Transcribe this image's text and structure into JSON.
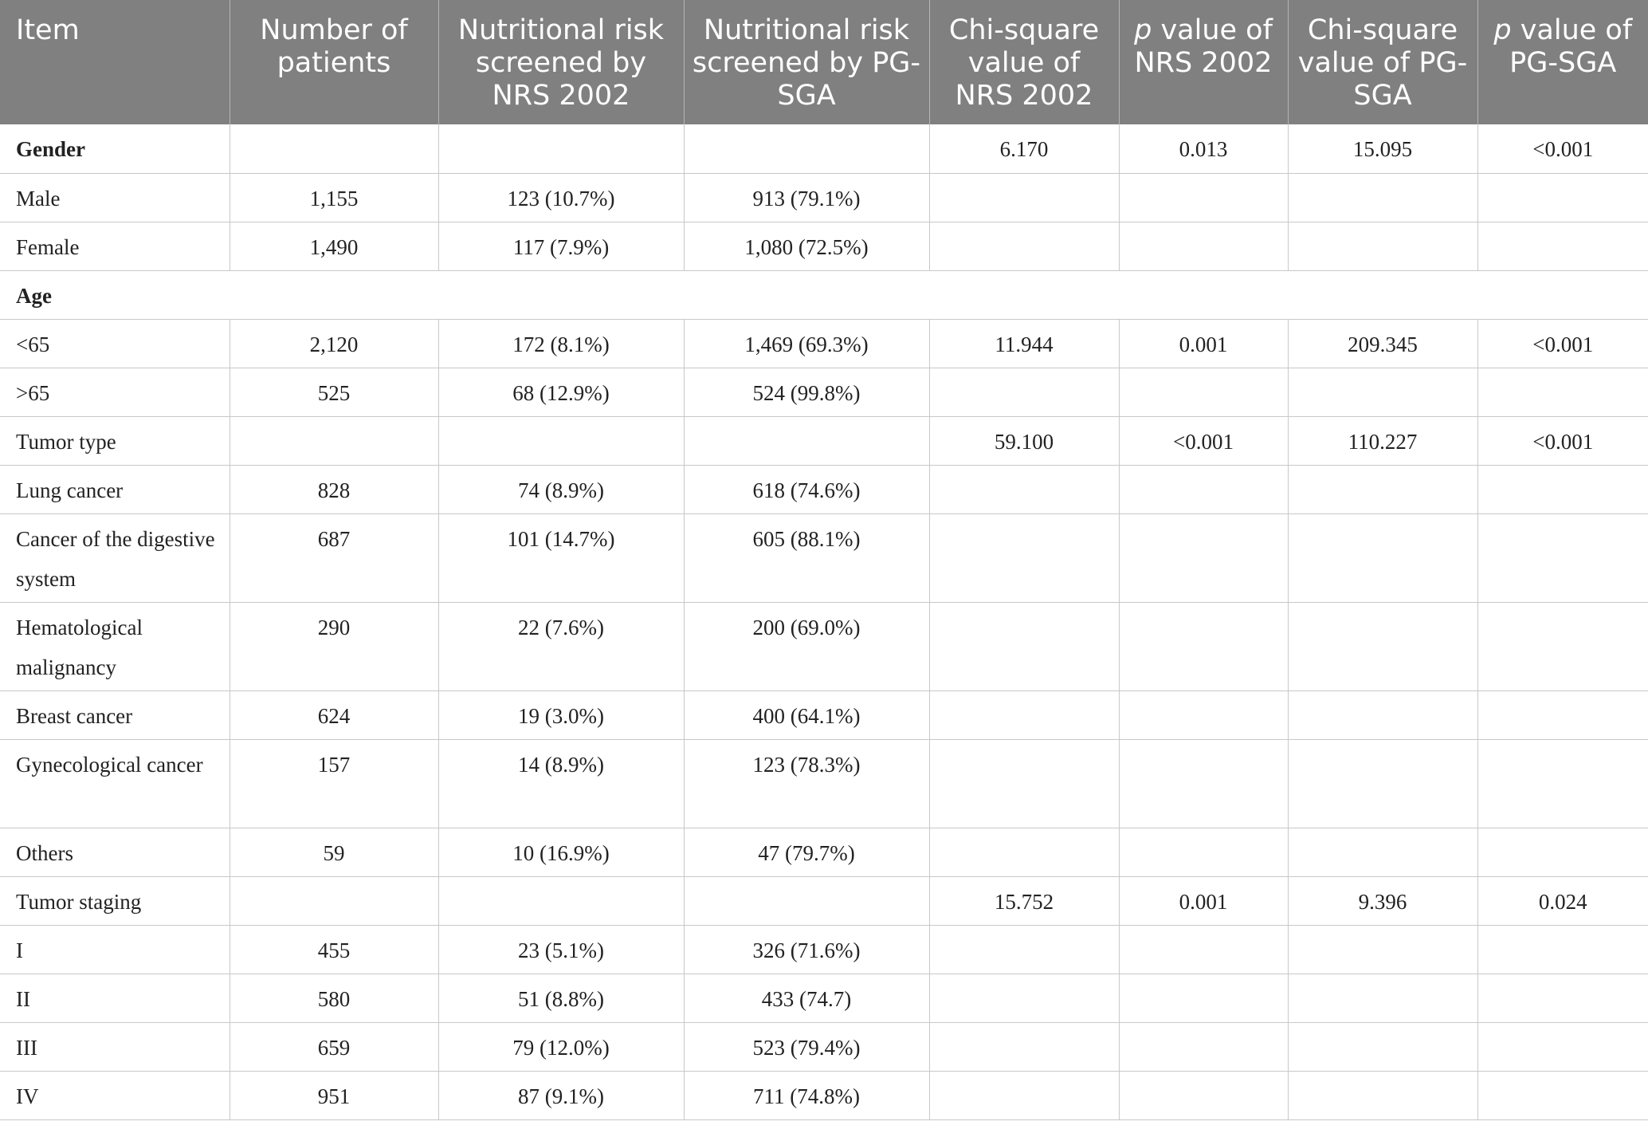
{
  "header": {
    "item": "Item",
    "patients": "Number of patients",
    "nrs_risk": "Nutritional risk screened by NRS 2002",
    "pgsga_risk": "Nutritional risk screened by PG-SGA",
    "chi_nrs": "Chi-square value of NRS 2002",
    "p_nrs_prefix": "p",
    "p_nrs_suffix": " value of NRS 2002",
    "chi_pgsga": "Chi-square value of PG-SGA",
    "p_pgsga_prefix": "p",
    "p_pgsga_suffix": " value of PG-SGA"
  },
  "rows": [
    {
      "item": "Gender",
      "patients": "",
      "nrs": "",
      "pgsga": "",
      "chi_nrs": "6.170",
      "p_nrs": "0.013",
      "chi_pgsga": "15.095",
      "p_pgsga": "<0.001"
    },
    {
      "item": "Male",
      "patients": "1,155",
      "nrs": "123 (10.7%)",
      "pgsga": "913 (79.1%)",
      "chi_nrs": "",
      "p_nrs": "",
      "chi_pgsga": "",
      "p_pgsga": ""
    },
    {
      "item": "Female",
      "patients": "1,490",
      "nrs": "117 (7.9%)",
      "pgsga": "1,080 (72.5%)",
      "chi_nrs": "",
      "p_nrs": "",
      "chi_pgsga": "",
      "p_pgsga": ""
    },
    {
      "item": "Age"
    },
    {
      "item": "<65",
      "patients": "2,120",
      "nrs": "172 (8.1%)",
      "pgsga": "1,469 (69.3%)",
      "chi_nrs": "11.944",
      "p_nrs": "0.001",
      "chi_pgsga": "209.345",
      "p_pgsga": "<0.001"
    },
    {
      "item": ">65",
      "patients": "525",
      "nrs": "68 (12.9%)",
      "pgsga": "524 (99.8%)",
      "chi_nrs": "",
      "p_nrs": "",
      "chi_pgsga": "",
      "p_pgsga": ""
    },
    {
      "item": "Tumor type",
      "patients": "",
      "nrs": "",
      "pgsga": "",
      "chi_nrs": "59.100",
      "p_nrs": "<0.001",
      "chi_pgsga": "110.227",
      "p_pgsga": "<0.001"
    },
    {
      "item": "Lung cancer",
      "patients": "828",
      "nrs": "74 (8.9%)",
      "pgsga": "618 (74.6%)",
      "chi_nrs": "",
      "p_nrs": "",
      "chi_pgsga": "",
      "p_pgsga": ""
    },
    {
      "item": "Cancer of the digestive system",
      "patients": "687",
      "nrs": "101 (14.7%)",
      "pgsga": "605 (88.1%)",
      "chi_nrs": "",
      "p_nrs": "",
      "chi_pgsga": "",
      "p_pgsga": ""
    },
    {
      "item": "Hematological malignancy",
      "patients": "290",
      "nrs": "22 (7.6%)",
      "pgsga": "200 (69.0%)",
      "chi_nrs": "",
      "p_nrs": "",
      "chi_pgsga": "",
      "p_pgsga": ""
    },
    {
      "item": "Breast cancer",
      "patients": "624",
      "nrs": "19 (3.0%)",
      "pgsga": "400 (64.1%)",
      "chi_nrs": "",
      "p_nrs": "",
      "chi_pgsga": "",
      "p_pgsga": ""
    },
    {
      "item": "Gynecological cancer",
      "patients": "157",
      "nrs": "14 (8.9%)",
      "pgsga": "123 (78.3%)",
      "chi_nrs": "",
      "p_nrs": "",
      "chi_pgsga": "",
      "p_pgsga": ""
    },
    {
      "item": "Others",
      "patients": "59",
      "nrs": "10 (16.9%)",
      "pgsga": "47 (79.7%)",
      "chi_nrs": "",
      "p_nrs": "",
      "chi_pgsga": "",
      "p_pgsga": ""
    },
    {
      "item": "Tumor staging",
      "patients": "",
      "nrs": "",
      "pgsga": "",
      "chi_nrs": "15.752",
      "p_nrs": "0.001",
      "chi_pgsga": "9.396",
      "p_pgsga": "0.024"
    },
    {
      "item": "I",
      "patients": "455",
      "nrs": "23 (5.1%)",
      "pgsga": "326 (71.6%)",
      "chi_nrs": "",
      "p_nrs": "",
      "chi_pgsga": "",
      "p_pgsga": ""
    },
    {
      "item": "II",
      "patients": "580",
      "nrs": "51 (8.8%)",
      "pgsga": "433 (74.7)",
      "chi_nrs": "",
      "p_nrs": "",
      "chi_pgsga": "",
      "p_pgsga": ""
    },
    {
      "item": "III",
      "patients": "659",
      "nrs": "79 (12.0%)",
      "pgsga": "523 (79.4%)",
      "chi_nrs": "",
      "p_nrs": "",
      "chi_pgsga": "",
      "p_pgsga": ""
    },
    {
      "item": "IV",
      "patients": "951",
      "nrs": "87 (9.1%)",
      "pgsga": "711 (74.8%)",
      "chi_nrs": "",
      "p_nrs": "",
      "chi_pgsga": "",
      "p_pgsga": ""
    }
  ]
}
